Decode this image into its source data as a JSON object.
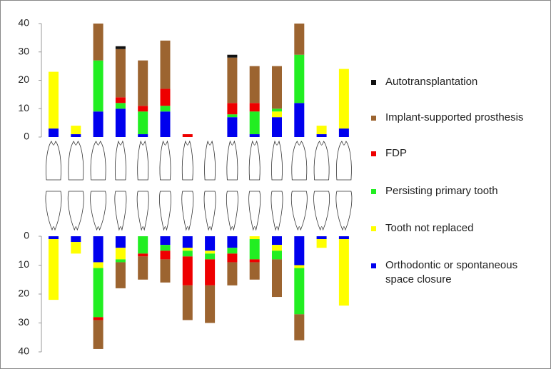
{
  "chart_data": [
    {
      "type": "bar",
      "stacked": true,
      "legend": "right",
      "ylim": [
        0,
        40
      ],
      "yticks": [
        0,
        10,
        20,
        30,
        40
      ],
      "series": [
        {
          "name": "Orthodontic or spontaneous space closure",
          "color": "#0000ee",
          "values": [
            3,
            1,
            9,
            10,
            1,
            9,
            0,
            0,
            7,
            1,
            7,
            12,
            1,
            3
          ]
        },
        {
          "name": "Tooth not replaced",
          "color": "#ffff00",
          "values": [
            20,
            3,
            0,
            0,
            0,
            0,
            0,
            0,
            0,
            0,
            2,
            0,
            3,
            21
          ]
        },
        {
          "name": "Persisting primary tooth",
          "color": "#22ee22",
          "values": [
            0,
            0,
            18,
            2,
            8,
            2,
            0,
            0,
            1,
            8,
            1,
            17,
            0,
            0
          ]
        },
        {
          "name": "FDP",
          "color": "#ee0000",
          "values": [
            0,
            0,
            0,
            2,
            2,
            6,
            1,
            0,
            4,
            3,
            0,
            0,
            0,
            0
          ]
        },
        {
          "name": "Implant-supported prosthesis",
          "color": "#9c6430",
          "values": [
            0,
            0,
            13,
            17,
            16,
            17,
            0,
            0,
            16,
            13,
            15,
            11,
            0,
            0
          ]
        },
        {
          "name": "Autotransplantation",
          "color": "#111111",
          "values": [
            0,
            0,
            0,
            1,
            0,
            0,
            0,
            0,
            1,
            0,
            0,
            0,
            0,
            0
          ]
        }
      ]
    },
    {
      "type": "bar",
      "stacked": true,
      "inverted": true,
      "ylim": [
        0,
        40
      ],
      "yticks": [
        0,
        10,
        20,
        30,
        40
      ],
      "series": [
        {
          "color": "#0000ee",
          "values": [
            1,
            2,
            9,
            4,
            0,
            3,
            4,
            5,
            4,
            0,
            3,
            10,
            1,
            1
          ]
        },
        {
          "color": "#ffff00",
          "values": [
            21,
            4,
            2,
            4,
            0,
            0,
            1,
            1,
            0,
            1,
            2,
            1,
            3,
            23
          ]
        },
        {
          "color": "#22ee22",
          "values": [
            0,
            0,
            17,
            1,
            6,
            2,
            2,
            2,
            2,
            7,
            3,
            16,
            0,
            0
          ]
        },
        {
          "color": "#ee0000",
          "values": [
            0,
            0,
            1,
            0,
            1,
            3,
            10,
            9,
            3,
            1,
            0,
            0,
            0,
            0
          ]
        },
        {
          "color": "#9c6430",
          "values": [
            0,
            0,
            10,
            9,
            8,
            8,
            12,
            13,
            8,
            6,
            13,
            9,
            0,
            0
          ]
        },
        {
          "color": "#111111",
          "values": [
            0,
            0,
            0,
            0,
            0,
            0,
            0,
            0,
            0,
            0,
            0,
            0,
            0,
            0
          ]
        }
      ]
    }
  ]
}
